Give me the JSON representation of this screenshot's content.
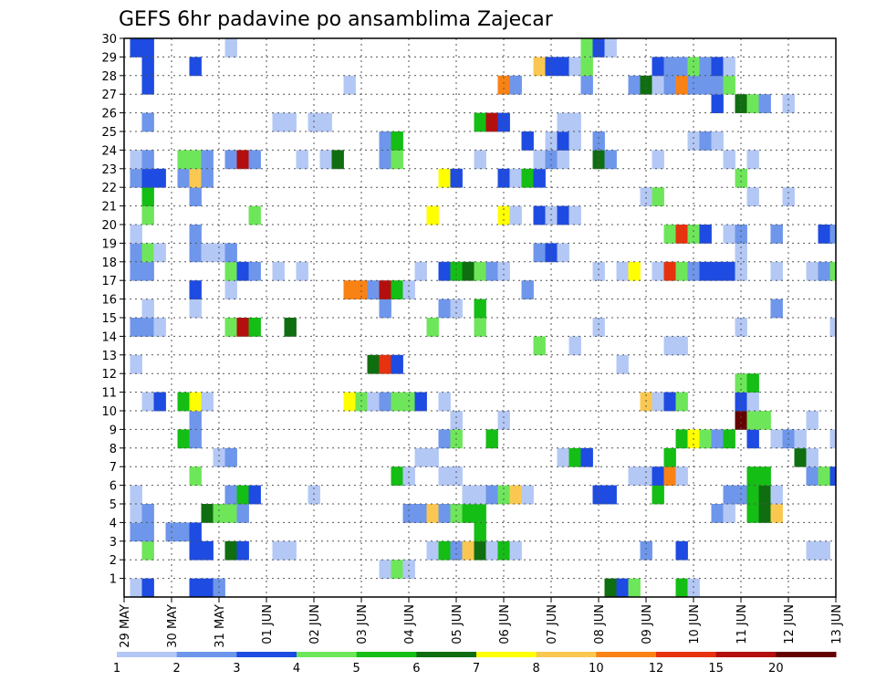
{
  "chart_data": {
    "type": "heatmap",
    "title": "GEFS 6hr padavine po ansamblima Zajecar",
    "xlabel": "",
    "ylabel": "",
    "x_tick_labels": [
      "29 MAY",
      "30 MAY",
      "31 MAY",
      "01 JUN",
      "02 JUN",
      "03 JUN",
      "04 JUN",
      "05 JUN",
      "06 JUN",
      "07 JUN",
      "08 JUN",
      "09 JUN",
      "10 JUN",
      "11 JUN",
      "12 JUN",
      "13 JUN"
    ],
    "x_range": [
      0,
      60
    ],
    "y_range": [
      0,
      30
    ],
    "y_tick_labels": [
      1,
      2,
      3,
      4,
      5,
      6,
      7,
      8,
      9,
      10,
      11,
      12,
      13,
      14,
      15,
      16,
      17,
      18,
      19,
      20,
      21,
      22,
      23,
      24,
      25,
      26,
      27,
      28,
      29,
      30
    ],
    "grid": true,
    "colorbar": {
      "placement": "bottom",
      "labels": [
        "1",
        "2",
        "3",
        "4",
        "5",
        "6",
        "7",
        "8",
        "10",
        "12",
        "15",
        "20"
      ],
      "colors": [
        "#b4c8f5",
        "#6e96eb",
        "#1e4be1",
        "#6ee65a",
        "#14be14",
        "#0f6e0f",
        "#ffff00",
        "#fac850",
        "#fa8214",
        "#e6320f",
        "#b40f0f",
        "#640000"
      ]
    },
    "cells": [
      [
        1,
        0,
        1
      ],
      [
        2,
        0,
        3
      ],
      [
        6,
        0,
        3
      ],
      [
        7,
        0,
        3
      ],
      [
        8,
        0,
        2
      ],
      [
        41,
        0,
        6
      ],
      [
        42,
        0,
        3
      ],
      [
        43,
        0,
        4
      ],
      [
        47,
        0,
        5
      ],
      [
        48,
        0,
        1
      ],
      [
        22,
        1,
        1
      ],
      [
        23,
        1,
        4
      ],
      [
        24,
        1,
        1
      ],
      [
        2,
        2,
        4
      ],
      [
        6,
        2,
        3
      ],
      [
        7,
        2,
        3
      ],
      [
        9,
        2,
        6
      ],
      [
        10,
        2,
        3
      ],
      [
        13,
        2,
        1
      ],
      [
        14,
        2,
        1
      ],
      [
        26,
        2,
        1
      ],
      [
        27,
        2,
        5
      ],
      [
        28,
        2,
        2
      ],
      [
        29,
        2,
        8
      ],
      [
        30,
        2,
        6
      ],
      [
        31,
        2,
        1
      ],
      [
        32,
        2,
        5
      ],
      [
        33,
        2,
        1
      ],
      [
        44,
        2,
        2
      ],
      [
        47,
        2,
        3
      ],
      [
        58,
        2,
        1
      ],
      [
        59,
        2,
        1
      ],
      [
        1,
        3,
        2
      ],
      [
        2,
        3,
        2
      ],
      [
        4,
        3,
        2
      ],
      [
        5,
        3,
        2
      ],
      [
        6,
        3,
        3
      ],
      [
        30,
        3,
        5
      ],
      [
        1,
        4,
        1
      ],
      [
        2,
        4,
        2
      ],
      [
        7,
        4,
        6
      ],
      [
        8,
        4,
        4
      ],
      [
        9,
        4,
        4
      ],
      [
        10,
        4,
        2
      ],
      [
        24,
        4,
        2
      ],
      [
        25,
        4,
        2
      ],
      [
        26,
        4,
        8
      ],
      [
        27,
        4,
        2
      ],
      [
        28,
        4,
        4
      ],
      [
        29,
        4,
        5
      ],
      [
        30,
        4,
        5
      ],
      [
        50,
        4,
        2
      ],
      [
        51,
        4,
        1
      ],
      [
        53,
        4,
        5
      ],
      [
        54,
        4,
        6
      ],
      [
        55,
        4,
        8
      ],
      [
        1,
        5,
        1
      ],
      [
        9,
        5,
        2
      ],
      [
        10,
        5,
        5
      ],
      [
        11,
        5,
        3
      ],
      [
        16,
        5,
        1
      ],
      [
        29,
        5,
        1
      ],
      [
        30,
        5,
        1
      ],
      [
        31,
        5,
        2
      ],
      [
        32,
        5,
        4
      ],
      [
        33,
        5,
        8
      ],
      [
        34,
        5,
        1
      ],
      [
        40,
        5,
        3
      ],
      [
        41,
        5,
        3
      ],
      [
        45,
        5,
        5
      ],
      [
        51,
        5,
        2
      ],
      [
        52,
        5,
        2
      ],
      [
        53,
        5,
        5
      ],
      [
        54,
        5,
        6
      ],
      [
        55,
        5,
        1
      ],
      [
        6,
        6,
        4
      ],
      [
        23,
        6,
        5
      ],
      [
        24,
        6,
        1
      ],
      [
        27,
        6,
        1
      ],
      [
        28,
        6,
        1
      ],
      [
        43,
        6,
        1
      ],
      [
        44,
        6,
        1
      ],
      [
        45,
        6,
        3
      ],
      [
        46,
        6,
        9
      ],
      [
        47,
        6,
        1
      ],
      [
        53,
        6,
        5
      ],
      [
        54,
        6,
        5
      ],
      [
        58,
        6,
        2
      ],
      [
        59,
        6,
        4
      ],
      [
        60,
        6,
        3
      ],
      [
        8,
        7,
        1
      ],
      [
        9,
        7,
        2
      ],
      [
        25,
        7,
        1
      ],
      [
        26,
        7,
        1
      ],
      [
        37,
        7,
        1
      ],
      [
        38,
        7,
        5
      ],
      [
        39,
        7,
        3
      ],
      [
        46,
        7,
        5
      ],
      [
        57,
        7,
        6
      ],
      [
        58,
        7,
        1
      ],
      [
        5,
        8,
        5
      ],
      [
        6,
        8,
        2
      ],
      [
        27,
        8,
        2
      ],
      [
        28,
        8,
        4
      ],
      [
        31,
        8,
        5
      ],
      [
        47,
        8,
        5
      ],
      [
        48,
        8,
        7
      ],
      [
        49,
        8,
        4
      ],
      [
        50,
        8,
        2
      ],
      [
        51,
        8,
        5
      ],
      [
        53,
        8,
        3
      ],
      [
        55,
        8,
        1
      ],
      [
        56,
        8,
        2
      ],
      [
        57,
        8,
        1
      ],
      [
        60,
        8,
        1
      ],
      [
        6,
        9,
        2
      ],
      [
        28,
        9,
        1
      ],
      [
        32,
        9,
        1
      ],
      [
        52,
        9,
        12
      ],
      [
        53,
        9,
        4
      ],
      [
        54,
        9,
        4
      ],
      [
        58,
        9,
        1
      ],
      [
        2,
        10,
        1
      ],
      [
        3,
        10,
        3
      ],
      [
        5,
        10,
        5
      ],
      [
        6,
        10,
        7
      ],
      [
        7,
        10,
        1
      ],
      [
        19,
        10,
        7
      ],
      [
        20,
        10,
        4
      ],
      [
        21,
        10,
        1
      ],
      [
        22,
        10,
        2
      ],
      [
        23,
        10,
        4
      ],
      [
        24,
        10,
        4
      ],
      [
        25,
        10,
        3
      ],
      [
        27,
        10,
        1
      ],
      [
        44,
        10,
        8
      ],
      [
        45,
        10,
        1
      ],
      [
        46,
        10,
        3
      ],
      [
        47,
        10,
        4
      ],
      [
        52,
        10,
        3
      ],
      [
        53,
        10,
        1
      ],
      [
        52,
        11,
        4
      ],
      [
        53,
        11,
        5
      ],
      [
        1,
        12,
        1
      ],
      [
        21,
        12,
        6
      ],
      [
        22,
        12,
        10
      ],
      [
        23,
        12,
        3
      ],
      [
        42,
        12,
        1
      ],
      [
        35,
        13,
        4
      ],
      [
        38,
        13,
        1
      ],
      [
        46,
        13,
        1
      ],
      [
        47,
        13,
        1
      ],
      [
        1,
        14,
        2
      ],
      [
        2,
        14,
        2
      ],
      [
        3,
        14,
        1
      ],
      [
        9,
        14,
        4
      ],
      [
        10,
        14,
        11
      ],
      [
        11,
        14,
        5
      ],
      [
        14,
        14,
        6
      ],
      [
        26,
        14,
        4
      ],
      [
        30,
        14,
        4
      ],
      [
        40,
        14,
        1
      ],
      [
        52,
        14,
        1
      ],
      [
        60,
        14,
        1
      ],
      [
        2,
        15,
        1
      ],
      [
        6,
        15,
        1
      ],
      [
        22,
        15,
        2
      ],
      [
        27,
        15,
        2
      ],
      [
        28,
        15,
        1
      ],
      [
        30,
        15,
        5
      ],
      [
        55,
        15,
        2
      ],
      [
        6,
        16,
        3
      ],
      [
        19,
        16,
        9
      ],
      [
        20,
        16,
        9
      ],
      [
        21,
        16,
        2
      ],
      [
        22,
        16,
        11
      ],
      [
        23,
        16,
        5
      ],
      [
        24,
        16,
        1
      ],
      [
        34,
        16,
        2
      ],
      [
        9,
        16,
        1
      ],
      [
        1,
        17,
        2
      ],
      [
        2,
        17,
        2
      ],
      [
        9,
        17,
        4
      ],
      [
        10,
        17,
        3
      ],
      [
        11,
        17,
        2
      ],
      [
        13,
        17,
        1
      ],
      [
        15,
        17,
        1
      ],
      [
        25,
        17,
        1
      ],
      [
        27,
        17,
        3
      ],
      [
        28,
        17,
        5
      ],
      [
        29,
        17,
        6
      ],
      [
        30,
        17,
        4
      ],
      [
        31,
        17,
        2
      ],
      [
        32,
        17,
        1
      ],
      [
        40,
        17,
        1
      ],
      [
        42,
        17,
        1
      ],
      [
        43,
        17,
        7
      ],
      [
        45,
        17,
        1
      ],
      [
        46,
        17,
        10
      ],
      [
        47,
        17,
        4
      ],
      [
        48,
        17,
        2
      ],
      [
        49,
        17,
        3
      ],
      [
        50,
        17,
        3
      ],
      [
        51,
        17,
        3
      ],
      [
        52,
        17,
        1
      ],
      [
        55,
        17,
        1
      ],
      [
        58,
        17,
        1
      ],
      [
        59,
        17,
        2
      ],
      [
        60,
        17,
        4
      ],
      [
        1,
        18,
        2
      ],
      [
        2,
        18,
        4
      ],
      [
        3,
        18,
        1
      ],
      [
        6,
        18,
        2
      ],
      [
        7,
        18,
        1
      ],
      [
        8,
        18,
        1
      ],
      [
        9,
        18,
        2
      ],
      [
        35,
        18,
        2
      ],
      [
        36,
        18,
        3
      ],
      [
        37,
        18,
        1
      ],
      [
        52,
        18,
        1
      ],
      [
        1,
        19,
        1
      ],
      [
        6,
        19,
        2
      ],
      [
        46,
        19,
        4
      ],
      [
        47,
        19,
        10
      ],
      [
        48,
        19,
        4
      ],
      [
        49,
        19,
        3
      ],
      [
        51,
        19,
        1
      ],
      [
        52,
        19,
        2
      ],
      [
        55,
        19,
        2
      ],
      [
        59,
        19,
        3
      ],
      [
        60,
        19,
        2
      ],
      [
        2,
        20,
        4
      ],
      [
        11,
        20,
        4
      ],
      [
        26,
        20,
        7
      ],
      [
        32,
        20,
        7
      ],
      [
        33,
        20,
        1
      ],
      [
        35,
        20,
        3
      ],
      [
        36,
        20,
        1
      ],
      [
        37,
        20,
        3
      ],
      [
        38,
        20,
        1
      ],
      [
        2,
        21,
        5
      ],
      [
        6,
        21,
        2
      ],
      [
        44,
        21,
        1
      ],
      [
        45,
        21,
        4
      ],
      [
        53,
        21,
        1
      ],
      [
        56,
        21,
        1
      ],
      [
        1,
        22,
        2
      ],
      [
        2,
        22,
        3
      ],
      [
        3,
        22,
        3
      ],
      [
        5,
        22,
        2
      ],
      [
        6,
        22,
        8
      ],
      [
        7,
        22,
        2
      ],
      [
        27,
        22,
        7
      ],
      [
        28,
        22,
        3
      ],
      [
        32,
        22,
        3
      ],
      [
        33,
        22,
        1
      ],
      [
        34,
        22,
        5
      ],
      [
        35,
        22,
        3
      ],
      [
        52,
        22,
        4
      ],
      [
        1,
        23,
        1
      ],
      [
        2,
        23,
        2
      ],
      [
        5,
        23,
        4
      ],
      [
        6,
        23,
        4
      ],
      [
        7,
        23,
        2
      ],
      [
        9,
        23,
        2
      ],
      [
        10,
        23,
        11
      ],
      [
        11,
        23,
        2
      ],
      [
        15,
        23,
        1
      ],
      [
        17,
        23,
        1
      ],
      [
        18,
        23,
        6
      ],
      [
        22,
        23,
        2
      ],
      [
        23,
        23,
        4
      ],
      [
        30,
        23,
        1
      ],
      [
        35,
        23,
        1
      ],
      [
        36,
        23,
        2
      ],
      [
        37,
        23,
        1
      ],
      [
        40,
        23,
        6
      ],
      [
        41,
        23,
        2
      ],
      [
        45,
        23,
        1
      ],
      [
        51,
        23,
        1
      ],
      [
        53,
        23,
        1
      ],
      [
        22,
        24,
        2
      ],
      [
        23,
        24,
        5
      ],
      [
        34,
        24,
        3
      ],
      [
        36,
        24,
        1
      ],
      [
        37,
        24,
        3
      ],
      [
        38,
        24,
        1
      ],
      [
        40,
        24,
        2
      ],
      [
        48,
        24,
        1
      ],
      [
        49,
        24,
        2
      ],
      [
        50,
        24,
        1
      ],
      [
        2,
        25,
        2
      ],
      [
        13,
        25,
        1
      ],
      [
        14,
        25,
        1
      ],
      [
        16,
        25,
        1
      ],
      [
        17,
        25,
        1
      ],
      [
        30,
        25,
        5
      ],
      [
        31,
        25,
        11
      ],
      [
        32,
        25,
        3
      ],
      [
        37,
        25,
        1
      ],
      [
        38,
        25,
        1
      ],
      [
        50,
        26,
        3
      ],
      [
        52,
        26,
        6
      ],
      [
        53,
        26,
        4
      ],
      [
        54,
        26,
        2
      ],
      [
        56,
        26,
        1
      ],
      [
        2,
        27,
        3
      ],
      [
        19,
        27,
        1
      ],
      [
        32,
        27,
        9
      ],
      [
        33,
        27,
        2
      ],
      [
        39,
        27,
        2
      ],
      [
        43,
        27,
        2
      ],
      [
        44,
        27,
        6
      ],
      [
        45,
        27,
        1
      ],
      [
        46,
        27,
        2
      ],
      [
        47,
        27,
        9
      ],
      [
        48,
        27,
        2
      ],
      [
        49,
        27,
        2
      ],
      [
        50,
        27,
        2
      ],
      [
        51,
        27,
        4
      ],
      [
        2,
        28,
        3
      ],
      [
        6,
        28,
        3
      ],
      [
        35,
        28,
        8
      ],
      [
        36,
        28,
        3
      ],
      [
        37,
        28,
        3
      ],
      [
        38,
        28,
        1
      ],
      [
        39,
        28,
        4
      ],
      [
        45,
        28,
        3
      ],
      [
        46,
        28,
        2
      ],
      [
        47,
        28,
        2
      ],
      [
        48,
        28,
        4
      ],
      [
        49,
        28,
        2
      ],
      [
        50,
        28,
        3
      ],
      [
        51,
        28,
        1
      ],
      [
        1,
        29,
        3
      ],
      [
        2,
        29,
        3
      ],
      [
        9,
        29,
        1
      ],
      [
        39,
        29,
        4
      ],
      [
        40,
        29,
        3
      ],
      [
        41,
        29,
        1
      ]
    ]
  }
}
